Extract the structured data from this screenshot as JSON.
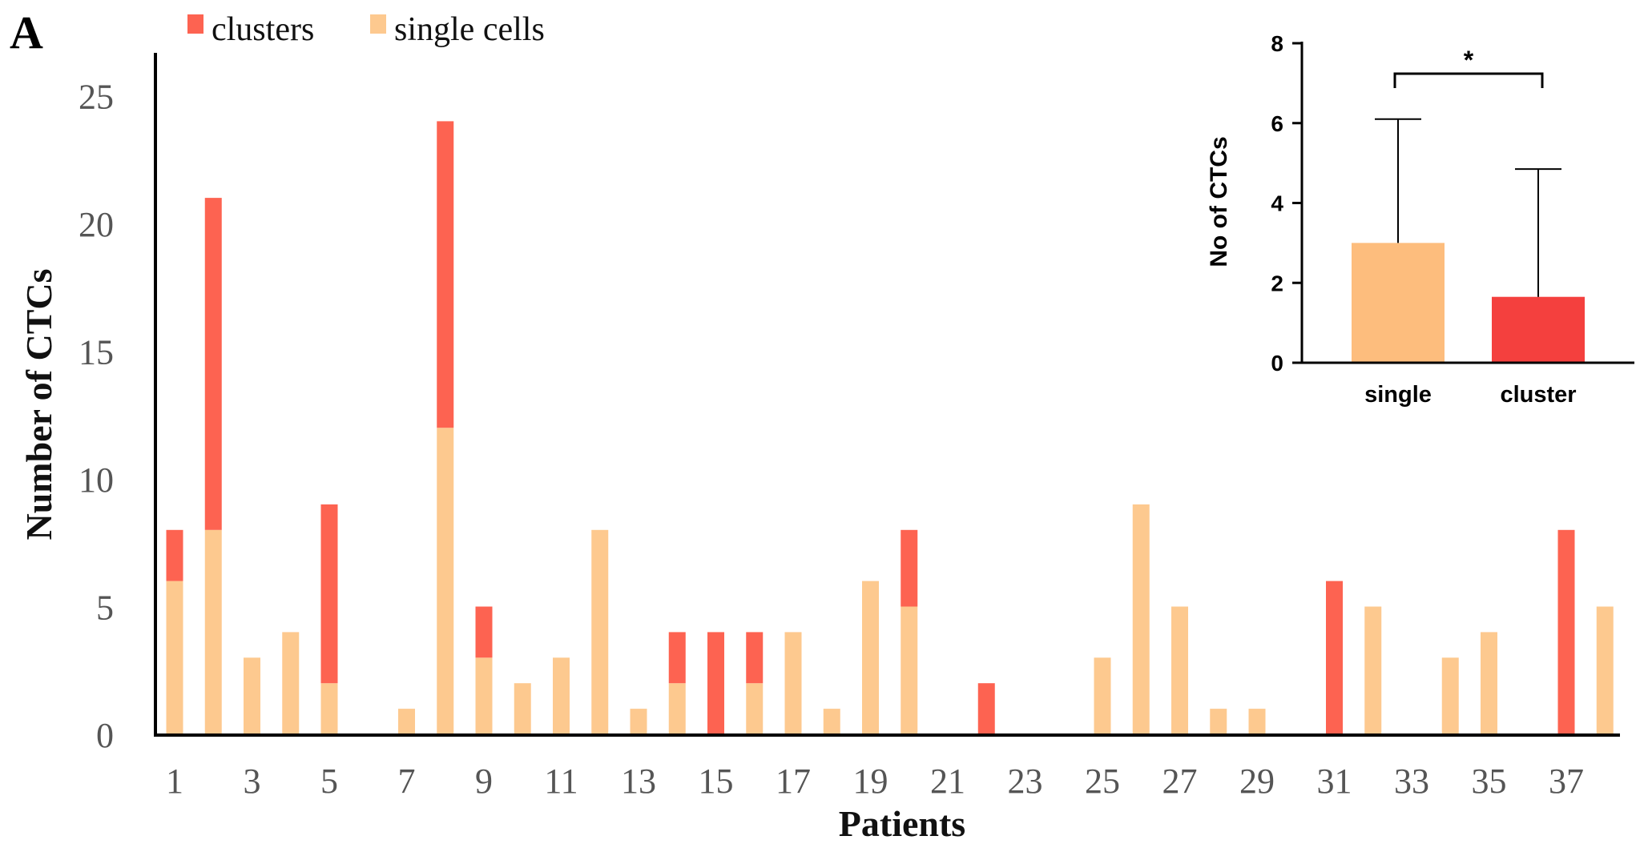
{
  "panel_label": "A",
  "colors": {
    "clusters": "#fd6351",
    "single_cells": "#fdc98f",
    "inset_single": "#fdbd7d",
    "inset_cluster": "#f4403e",
    "axis": "#000000",
    "tick_text": "#555555"
  },
  "chart_data": [
    {
      "type": "bar",
      "stacked": true,
      "title": "",
      "xlabel": "Patients",
      "ylabel": "Number of CTCs",
      "ylim": [
        0,
        26
      ],
      "yticks": [
        0,
        5,
        10,
        15,
        20,
        25
      ],
      "categories": [
        1,
        2,
        3,
        4,
        5,
        6,
        7,
        8,
        9,
        10,
        11,
        12,
        13,
        14,
        15,
        16,
        17,
        18,
        19,
        20,
        21,
        22,
        23,
        24,
        25,
        26,
        27,
        28,
        29,
        30,
        31,
        32,
        33,
        34,
        35,
        36,
        37,
        38
      ],
      "xtick_labels": [
        "1",
        "3",
        "5",
        "7",
        "9",
        "11",
        "13",
        "15",
        "17",
        "19",
        "21",
        "23",
        "25",
        "27",
        "29",
        "31",
        "33",
        "35",
        "37"
      ],
      "legend": {
        "position": "top-left",
        "entries": [
          "clusters",
          "single cells"
        ]
      },
      "series": [
        {
          "name": "single cells",
          "values": [
            6,
            8,
            3,
            4,
            2,
            0,
            1,
            12,
            3,
            2,
            3,
            8,
            1,
            2,
            0,
            2,
            4,
            1,
            6,
            5,
            0,
            0,
            0,
            0,
            3,
            9,
            5,
            1,
            1,
            0,
            0,
            5,
            0,
            3,
            4,
            0,
            0,
            5
          ]
        },
        {
          "name": "clusters",
          "values": [
            2,
            13,
            0,
            0,
            7,
            0,
            0,
            12,
            2,
            0,
            0,
            0,
            0,
            2,
            4,
            2,
            0,
            0,
            0,
            3,
            0,
            2,
            0,
            0,
            0,
            0,
            0,
            0,
            0,
            0,
            6,
            0,
            0,
            0,
            0,
            0,
            8,
            0
          ]
        }
      ]
    },
    {
      "type": "bar",
      "title": "",
      "xlabel": "",
      "ylabel": "No of CTCs",
      "ylim": [
        0,
        8
      ],
      "yticks": [
        0,
        2,
        4,
        6,
        8
      ],
      "categories": [
        "single",
        "cluster"
      ],
      "values": [
        3.0,
        1.65
      ],
      "error_upper": [
        3.1,
        3.2
      ],
      "annotation": {
        "text": "*",
        "between": [
          "single",
          "cluster"
        ]
      }
    }
  ]
}
